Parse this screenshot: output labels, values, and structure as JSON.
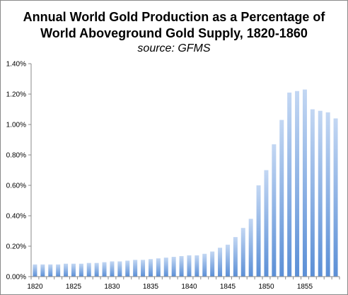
{
  "chart_data": {
    "type": "bar",
    "title": "Annual World Gold Production as a Percentage of World Aboveground Gold Supply, 1820-1860",
    "title_lines": [
      "Annual World Gold Production as a Percentage of",
      "World Aboveground Gold Supply, 1820-1860"
    ],
    "subtitle": "source: GFMS",
    "xlabel": "",
    "ylabel": "",
    "ylim": [
      0,
      1.4
    ],
    "y_ticks": [
      0,
      0.2,
      0.4,
      0.6,
      0.8,
      1.0,
      1.2,
      1.4
    ],
    "y_tick_labels": [
      "0.00%",
      "0.20%",
      "0.40%",
      "0.60%",
      "0.80%",
      "1.00%",
      "1.20%",
      "1.40%"
    ],
    "x_tick_labels": [
      "1820",
      "1825",
      "1830",
      "1835",
      "1840",
      "1845",
      "1850",
      "1855"
    ],
    "categories": [
      1820,
      1821,
      1822,
      1823,
      1824,
      1825,
      1826,
      1827,
      1828,
      1829,
      1830,
      1831,
      1832,
      1833,
      1834,
      1835,
      1836,
      1837,
      1838,
      1839,
      1840,
      1841,
      1842,
      1843,
      1844,
      1845,
      1846,
      1847,
      1848,
      1849,
      1850,
      1851,
      1852,
      1853,
      1854,
      1855,
      1856,
      1857,
      1858,
      1859
    ],
    "values": [
      0.08,
      0.08,
      0.08,
      0.08,
      0.085,
      0.085,
      0.085,
      0.09,
      0.09,
      0.095,
      0.1,
      0.1,
      0.105,
      0.11,
      0.11,
      0.115,
      0.12,
      0.125,
      0.13,
      0.135,
      0.14,
      0.14,
      0.15,
      0.165,
      0.19,
      0.21,
      0.26,
      0.32,
      0.38,
      0.6,
      0.7,
      0.87,
      1.03,
      1.21,
      1.22,
      1.23,
      1.1,
      1.09,
      1.08,
      1.04
    ],
    "grid": false,
    "bar_color": "#5b8fd6",
    "bar_color_light": "#b9d0f1"
  }
}
